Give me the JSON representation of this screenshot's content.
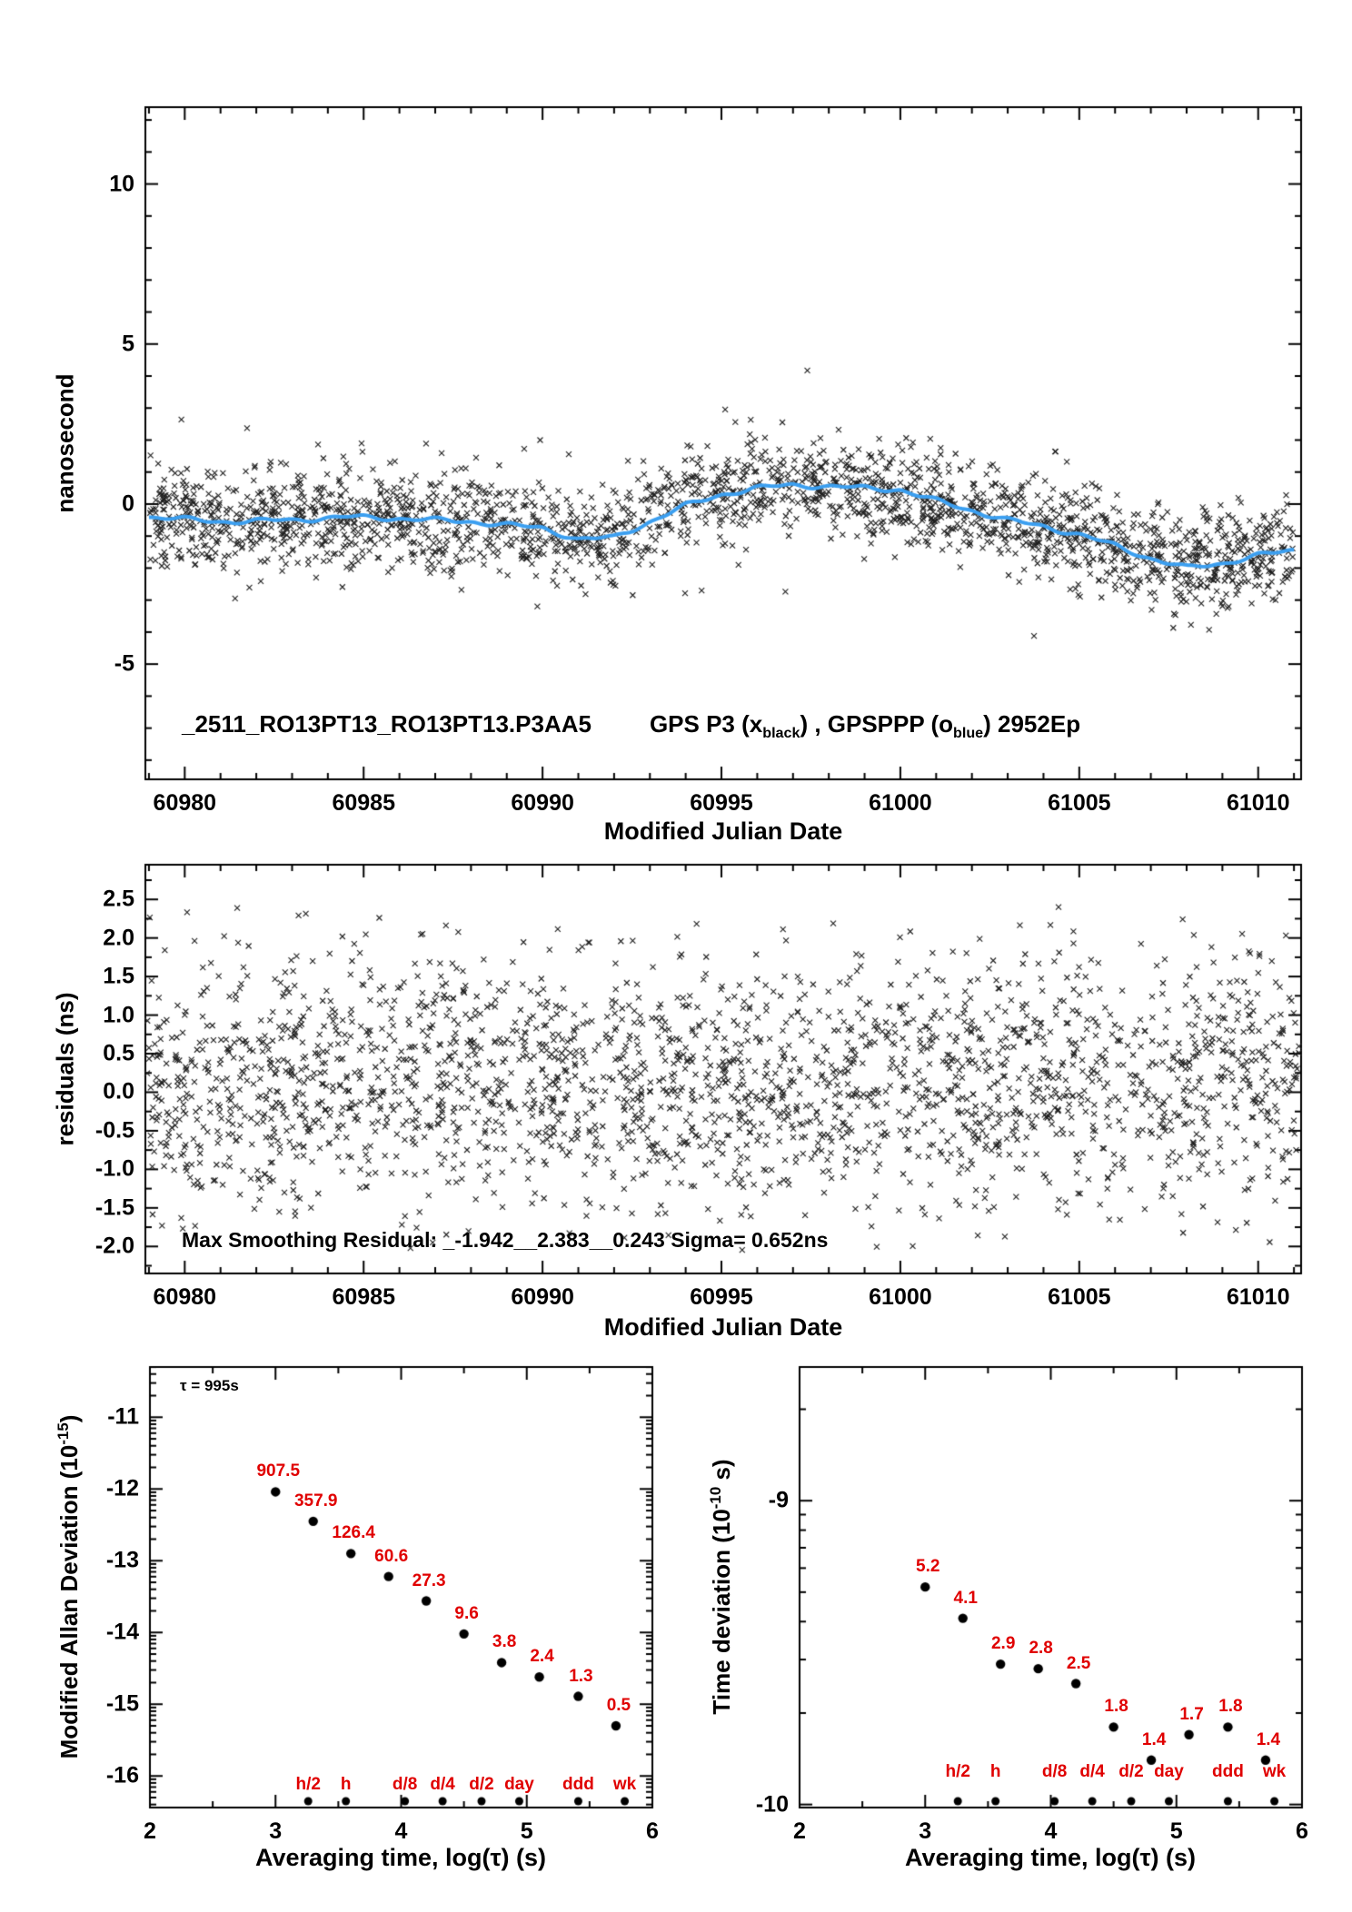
{
  "colors": {
    "marker_black": "#1f1f1f",
    "smooth_blue": "#3b9ff0",
    "label_red": "#e00000",
    "background": "#ffffff"
  },
  "chart_data": [
    {
      "type": "scatter",
      "panel": "top-timeseries",
      "ylabel": "nanosecond",
      "xlabel": "Modified Julian Date",
      "xlim": [
        60978.9,
        61011.2
      ],
      "ylim": [
        -8.6,
        12.4
      ],
      "xticks": [
        60980,
        60985,
        60990,
        60995,
        61000,
        61005,
        61010
      ],
      "xtick_labels": [
        "60980",
        "60985",
        "60990",
        "60995",
        "61000",
        "61005",
        "61010"
      ],
      "yticks": [
        10,
        5,
        0,
        -5
      ],
      "ytick_labels": [
        "10",
        "5",
        "0",
        "-5"
      ],
      "series_label": "_2511_RO13PT13_RO13PT13.P3AA5",
      "legend_parts": {
        "a": "GPS P3 (x",
        "a_sub": "black",
        "b": ") ,  GPSPPP (o",
        "b_sub": "blue",
        "c": ")  2952Ep"
      },
      "marker": "x",
      "n_points": 2300,
      "noise_sigma": 0.65,
      "line_color": "#3b9ff0",
      "x_data_range": [
        60979,
        61011
      ],
      "smooth_trend": [
        [
          60979,
          -0.4
        ],
        [
          60981,
          -0.55
        ],
        [
          60983,
          -0.5
        ],
        [
          60984.5,
          -0.4
        ],
        [
          60986,
          -0.45
        ],
        [
          60988,
          -0.55
        ],
        [
          60990,
          -0.75
        ],
        [
          60991,
          -1.1
        ],
        [
          60992,
          -1.05
        ],
        [
          60993,
          -0.55
        ],
        [
          60994,
          -0.05
        ],
        [
          60995,
          0.3
        ],
        [
          60996,
          0.5
        ],
        [
          60997,
          0.6
        ],
        [
          60998,
          0.55
        ],
        [
          60999,
          0.5
        ],
        [
          61000,
          0.45
        ],
        [
          61001,
          0.1
        ],
        [
          61002,
          -0.2
        ],
        [
          61003,
          -0.5
        ],
        [
          61004,
          -0.7
        ],
        [
          61005,
          -0.95
        ],
        [
          61006,
          -1.3
        ],
        [
          61007,
          -1.7
        ],
        [
          61008,
          -2.0
        ],
        [
          61009,
          -1.85
        ],
        [
          61010,
          -1.6
        ],
        [
          61011,
          -1.45
        ]
      ]
    },
    {
      "type": "scatter",
      "panel": "residuals",
      "ylabel": "residuals (ns)",
      "xlabel": "Modified Julian Date",
      "xlim": [
        60978.9,
        61011.2
      ],
      "ylim": [
        -2.35,
        2.95
      ],
      "xticks": [
        60980,
        60985,
        60990,
        60995,
        61000,
        61005,
        61010
      ],
      "xtick_labels": [
        "60980",
        "60985",
        "60990",
        "60995",
        "61000",
        "61005",
        "61010"
      ],
      "yticks": [
        2.5,
        2.0,
        1.5,
        1.0,
        0.5,
        0.0,
        -0.5,
        -1.0,
        -1.5,
        -2.0
      ],
      "ytick_labels": [
        "2.5",
        "2.0",
        "1.5",
        "1.0",
        "0.5",
        "0.0",
        "-0.5",
        "-1.0",
        "-1.5",
        "-2.0"
      ],
      "annotation": "Max Smoothing Residual: _-1.942__2.383__0.243  Sigma= 0.652ns",
      "marker": "x",
      "n_points": 2400,
      "noise_sigma": 0.652,
      "clip": [
        -2.05,
        2.42
      ]
    },
    {
      "type": "scatter",
      "panel": "modified-allan-deviation",
      "ylabel_parts": {
        "pre": "Modified Allan Deviation (10",
        "sup": "-15",
        "post": ")"
      },
      "xlabel": "Averaging time, log(τ) (s)",
      "xlim": [
        2,
        6
      ],
      "ylim": [
        -16.44,
        -10.3
      ],
      "xticks": [
        2,
        3,
        4,
        5,
        6
      ],
      "xtick_labels": [
        "2",
        "3",
        "4",
        "5",
        "6"
      ],
      "yticks": [
        -11,
        -12,
        -13,
        -14,
        -15,
        -16
      ],
      "ytick_labels": [
        "-11",
        "-12",
        "-13",
        "-14",
        "-15",
        "-16"
      ],
      "tau_note": "τ = 995s",
      "x": [
        3.0,
        3.3,
        3.6,
        3.9,
        4.2,
        4.5,
        4.8,
        5.1,
        5.41,
        5.71
      ],
      "y": [
        -12.04,
        -12.45,
        -12.9,
        -13.22,
        -13.56,
        -14.02,
        -14.42,
        -14.62,
        -14.89,
        -15.3
      ],
      "point_labels": [
        "907.5",
        "357.9",
        "126.4",
        "60.6",
        "27.3",
        "9.6",
        "3.8",
        "2.4",
        "1.3",
        "0.5"
      ],
      "tau_marks": {
        "labels": [
          "h/2",
          "h",
          "d/8",
          "d/4",
          "d/2",
          "day",
          "ddd",
          "wk"
        ],
        "x": [
          3.26,
          3.56,
          4.03,
          4.33,
          4.64,
          4.94,
          5.41,
          5.78
        ]
      }
    },
    {
      "type": "scatter",
      "panel": "time-deviation",
      "ylabel_parts": {
        "pre": "Time deviation (10",
        "sup": "-10",
        "post": " s)"
      },
      "xlabel": "Averaging time, log(τ) (s)",
      "xlim": [
        2,
        6
      ],
      "ylim": [
        -10.01,
        -8.56
      ],
      "xticks": [
        2,
        3,
        4,
        5,
        6
      ],
      "xtick_labels": [
        "2",
        "3",
        "4",
        "5",
        "6"
      ],
      "yticks": [
        -9,
        -10
      ],
      "ytick_labels": [
        "-9",
        "-10"
      ],
      "x": [
        3.0,
        3.3,
        3.6,
        3.9,
        4.2,
        4.5,
        4.8,
        5.1,
        5.41,
        5.71
      ],
      "y": [
        -9.284,
        -9.387,
        -9.538,
        -9.553,
        -9.602,
        -9.745,
        -9.854,
        -9.77,
        -9.745,
        -9.854
      ],
      "point_labels": [
        "5.2",
        "4.1",
        "2.9",
        "2.8",
        "2.5",
        "1.8",
        "1.4",
        "1.7",
        "1.8",
        "1.4"
      ],
      "tau_marks": {
        "labels": [
          "h/2",
          "h",
          "d/8",
          "d/4",
          "d/2",
          "day",
          "ddd",
          "wk"
        ],
        "x": [
          3.26,
          3.56,
          4.03,
          4.33,
          4.64,
          4.94,
          5.41,
          5.78
        ]
      }
    }
  ]
}
